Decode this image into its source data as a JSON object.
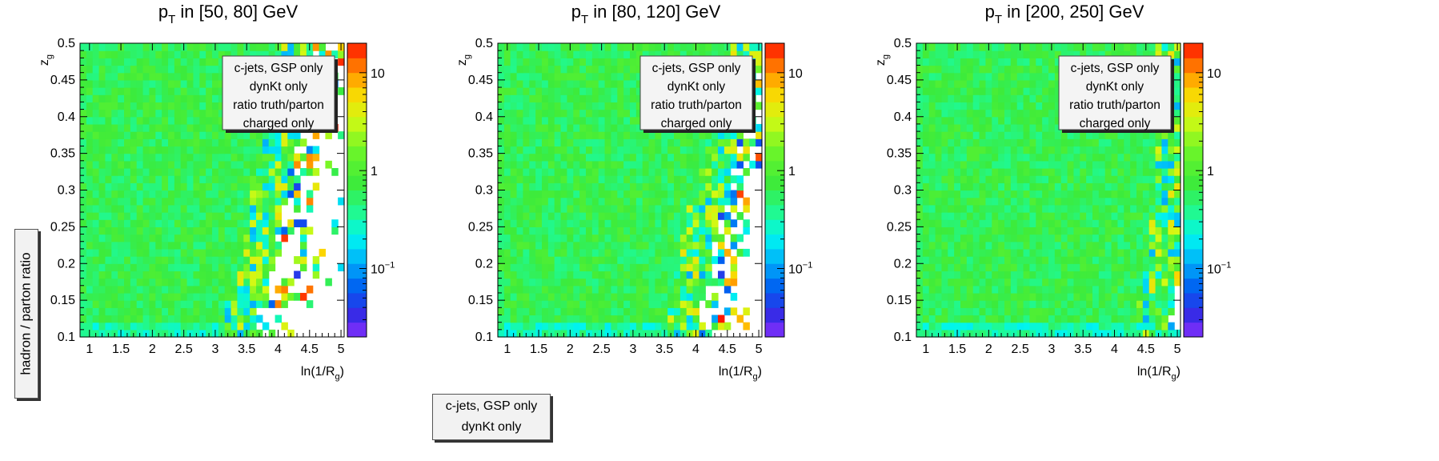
{
  "global_ylabel": "hadron / parton ratio",
  "bottom_legend": [
    "c-jets, GSP only",
    "dynKt only"
  ],
  "chart_data": [
    {
      "type": "heatmap",
      "title_main": "p",
      "title_sub": "T",
      "title_rest": " in [50, 80] GeV",
      "xlabel_main": "ln(1/R",
      "xlabel_sub": "g",
      "xlabel_end": ")",
      "ylabel_main": "z",
      "ylabel_sub": "g",
      "xlim": [
        0.85,
        5.05
      ],
      "ylim": [
        0.1,
        0.5
      ],
      "x_ticks": [
        "1",
        "1.5",
        "2",
        "2.5",
        "3",
        "3.5",
        "4",
        "4.5",
        "5"
      ],
      "y_ticks": [
        "0.1",
        "0.15",
        "0.2",
        "0.25",
        "0.3",
        "0.35",
        "0.4",
        "0.45",
        "0.5"
      ],
      "color_scale": "log",
      "zlim": [
        0.02,
        20
      ],
      "colorbar_ticks": [
        {
          "value": 0.1,
          "base": "10",
          "exp": "−1"
        },
        {
          "value": 1,
          "base": "1",
          "exp": ""
        },
        {
          "value": 10,
          "base": "10",
          "exp": ""
        }
      ],
      "n_xbins": 42,
      "n_ybins": 40,
      "boundary_x": [
        3.6,
        3.8,
        3.9,
        3.95,
        4.05,
        4.2,
        4.3,
        4.4,
        4.5
      ],
      "legend": [
        "c-jets, GSP only",
        "dynKt only",
        "ratio truth/parton",
        "charged only"
      ]
    },
    {
      "type": "heatmap",
      "title_main": "p",
      "title_sub": "T",
      "title_rest": " in [80, 120] GeV",
      "xlabel_main": "ln(1/R",
      "xlabel_sub": "g",
      "xlabel_end": ")",
      "ylabel_main": "z",
      "ylabel_sub": "g",
      "xlim": [
        0.85,
        5.05
      ],
      "ylim": [
        0.1,
        0.5
      ],
      "x_ticks": [
        "1",
        "1.5",
        "2",
        "2.5",
        "3",
        "3.5",
        "4",
        "4.5",
        "5"
      ],
      "y_ticks": [
        "0.1",
        "0.15",
        "0.2",
        "0.25",
        "0.3",
        "0.35",
        "0.4",
        "0.45",
        "0.5"
      ],
      "color_scale": "log",
      "zlim": [
        0.02,
        20
      ],
      "colorbar_ticks": [
        {
          "value": 0.1,
          "base": "10",
          "exp": "−1"
        },
        {
          "value": 1,
          "base": "1",
          "exp": ""
        },
        {
          "value": 10,
          "base": "10",
          "exp": ""
        }
      ],
      "n_xbins": 42,
      "n_ybins": 40,
      "boundary_x": [
        4.0,
        4.1,
        4.2,
        4.3,
        4.45,
        4.6,
        4.7,
        4.85,
        4.95
      ],
      "legend": [
        "c-jets, GSP only",
        "dynKt only",
        "ratio truth/parton",
        "charged only"
      ]
    },
    {
      "type": "heatmap",
      "title_main": "p",
      "title_sub": "T",
      "title_rest": " in [200, 250] GeV",
      "xlabel_main": "ln(1/R",
      "xlabel_sub": "g",
      "xlabel_end": ")",
      "ylabel_main": "z",
      "ylabel_sub": "g",
      "xlim": [
        0.85,
        5.05
      ],
      "ylim": [
        0.1,
        0.5
      ],
      "x_ticks": [
        "1",
        "1.5",
        "2",
        "2.5",
        "3",
        "3.5",
        "4",
        "4.5",
        "5"
      ],
      "y_ticks": [
        "0.1",
        "0.15",
        "0.2",
        "0.25",
        "0.3",
        "0.35",
        "0.4",
        "0.45",
        "0.5"
      ],
      "color_scale": "log",
      "zlim": [
        0.02,
        20
      ],
      "colorbar_ticks": [
        {
          "value": 0.1,
          "base": "10",
          "exp": "−1"
        },
        {
          "value": 1,
          "base": "1",
          "exp": ""
        },
        {
          "value": 10,
          "base": "10",
          "exp": ""
        }
      ],
      "n_xbins": 42,
      "n_ybins": 40,
      "boundary_x": [
        4.8,
        4.9,
        4.95,
        5.0,
        5.05,
        5.05,
        5.05,
        5.05,
        5.05
      ],
      "legend": [
        "c-jets, GSP only",
        "dynKt only",
        "ratio truth/parton",
        "charged only"
      ]
    }
  ]
}
